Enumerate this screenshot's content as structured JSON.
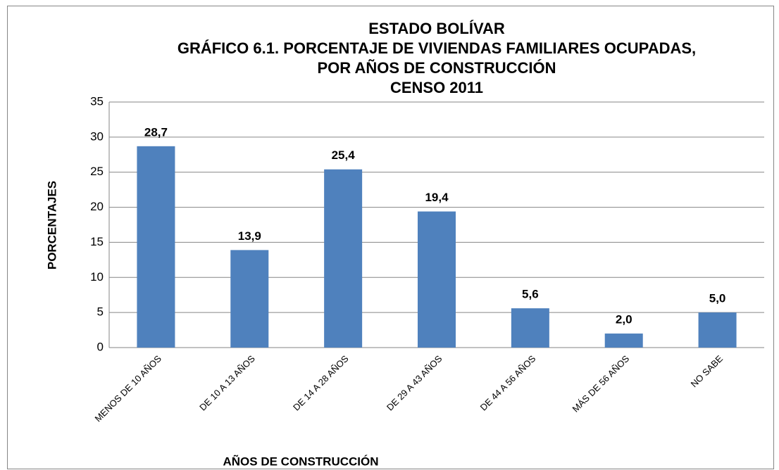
{
  "chart_data": {
    "type": "bar",
    "title": [
      "ESTADO BOLÍVAR",
      "GRÁFICO 6.1. PORCENTAJE DE VIVIENDAS FAMILIARES OCUPADAS,",
      "POR AÑOS DE CONSTRUCCIÓN",
      "CENSO 2011"
    ],
    "x_label": "AÑOS DE CONSTRUCCIÓN",
    "y_label": "PORCENTAJES",
    "categories": [
      "MENOS DE 10 AÑOS",
      "DE 10 A 13 AÑOS",
      "DE 14 A 28 AÑOS",
      "DE 29 A 43 AÑOS",
      "DE 44 A 56 AÑOS",
      "MÁS DE 56 AÑOS",
      "NO SABE"
    ],
    "values": [
      28.7,
      13.9,
      25.4,
      19.4,
      5.6,
      2.0,
      5.0
    ],
    "value_labels": [
      "28,7",
      "13,9",
      "25,4",
      "19,4",
      "5,6",
      "2,0",
      "5,0"
    ],
    "color": "#4f81bd",
    "ylim": [
      0,
      35
    ],
    "yticks": [
      0,
      5,
      10,
      15,
      20,
      25,
      30,
      35
    ],
    "grid": true
  }
}
